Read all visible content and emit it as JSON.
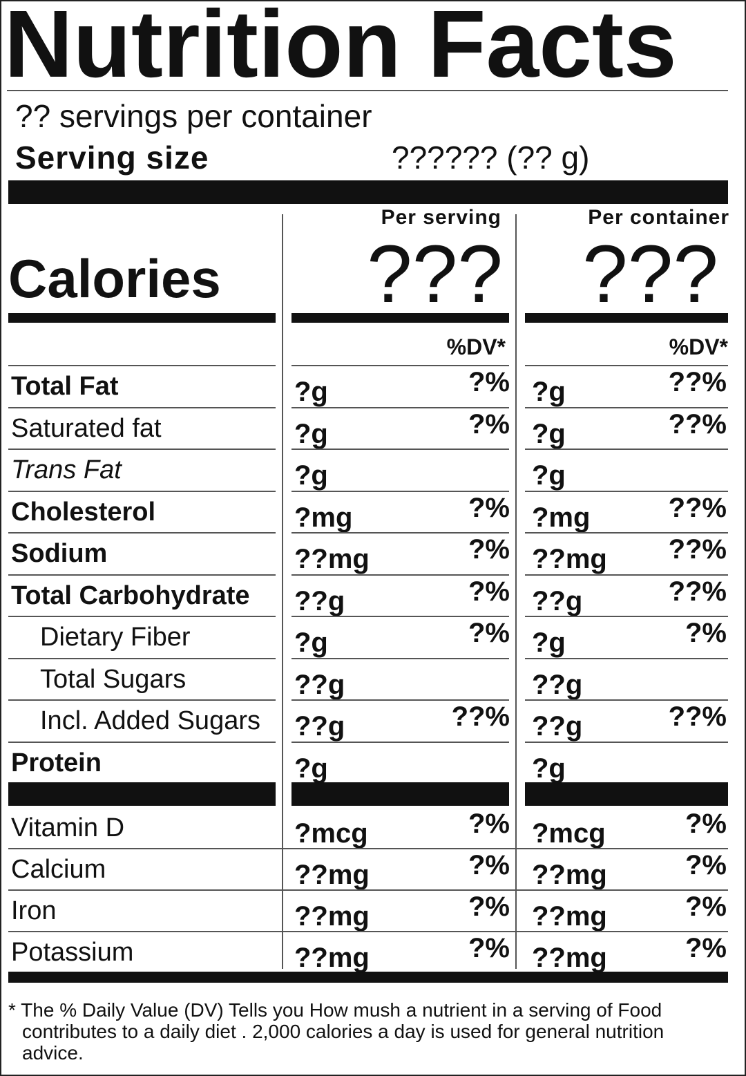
{
  "title": "Nutrition Facts",
  "servings": "?? servings per container",
  "serving_size": {
    "label": "Serving size",
    "value": "?????? (?? g)"
  },
  "calories": {
    "label": "Calories",
    "per_serving_header": "Per serving",
    "per_container_header": "Per container",
    "per_serving": "???",
    "per_container": "???"
  },
  "dv_headers": [
    "%DV*",
    "%DV*"
  ],
  "nutrients": [
    {
      "name": "Total Fat",
      "style": "bold",
      "serving_amount": "?g",
      "serving_dv": "?%",
      "container_amount": "?g",
      "container_dv": "??%"
    },
    {
      "name": "Saturated fat",
      "style": "normal",
      "serving_amount": "?g",
      "serving_dv": "?%",
      "container_amount": "?g",
      "container_dv": "??%"
    },
    {
      "name": "Trans Fat",
      "style": "italic",
      "serving_amount": "?g",
      "container_amount": "?g"
    },
    {
      "name": "Cholesterol",
      "style": "bold",
      "serving_amount": "?mg",
      "serving_dv": "?%",
      "container_amount": "?mg",
      "container_dv": "??%"
    },
    {
      "name": "Sodium",
      "style": "bold",
      "serving_amount": "??mg",
      "serving_dv": "?%",
      "container_amount": "??mg",
      "container_dv": "??%"
    },
    {
      "name": "Total Carbohydrate",
      "style": "bold",
      "serving_amount": "??g",
      "serving_dv": "?%",
      "container_amount": "??g",
      "container_dv": "??%"
    },
    {
      "name": "Dietary Fiber",
      "style": "indent",
      "serving_amount": "?g",
      "serving_dv": "?%",
      "container_amount": "?g",
      "container_dv": "?%"
    },
    {
      "name": "Total Sugars",
      "style": "indent",
      "serving_amount": "??g",
      "container_amount": "??g"
    },
    {
      "name": "Incl. Added Sugars",
      "style": "indent",
      "serving_amount": "??g",
      "serving_dv": "??%",
      "container_amount": "??g",
      "container_dv": "??%"
    },
    {
      "name": "Protein",
      "style": "bold",
      "serving_amount": "?g",
      "container_amount": "?g"
    }
  ],
  "vitamins": [
    {
      "name": "Vitamin D",
      "serving_amount": "?mcg",
      "serving_dv": "?%",
      "container_amount": "?mcg",
      "container_dv": "?%"
    },
    {
      "name": "Calcium",
      "serving_amount": "??mg",
      "serving_dv": "?%",
      "container_amount": "??mg",
      "container_dv": "?%"
    },
    {
      "name": "Iron",
      "serving_amount": "??mg",
      "serving_dv": "?%",
      "container_amount": "??mg",
      "container_dv": "?%"
    },
    {
      "name": "Potassium",
      "serving_amount": "??mg",
      "serving_dv": "?%",
      "container_amount": "??mg",
      "container_dv": "?%"
    }
  ],
  "footnote": "* The % Daily Value (DV) Tells you How mush a nutrient in a serving of Food contributes to a daily diet . 2,000 calories a day is used for general nutrition advice."
}
